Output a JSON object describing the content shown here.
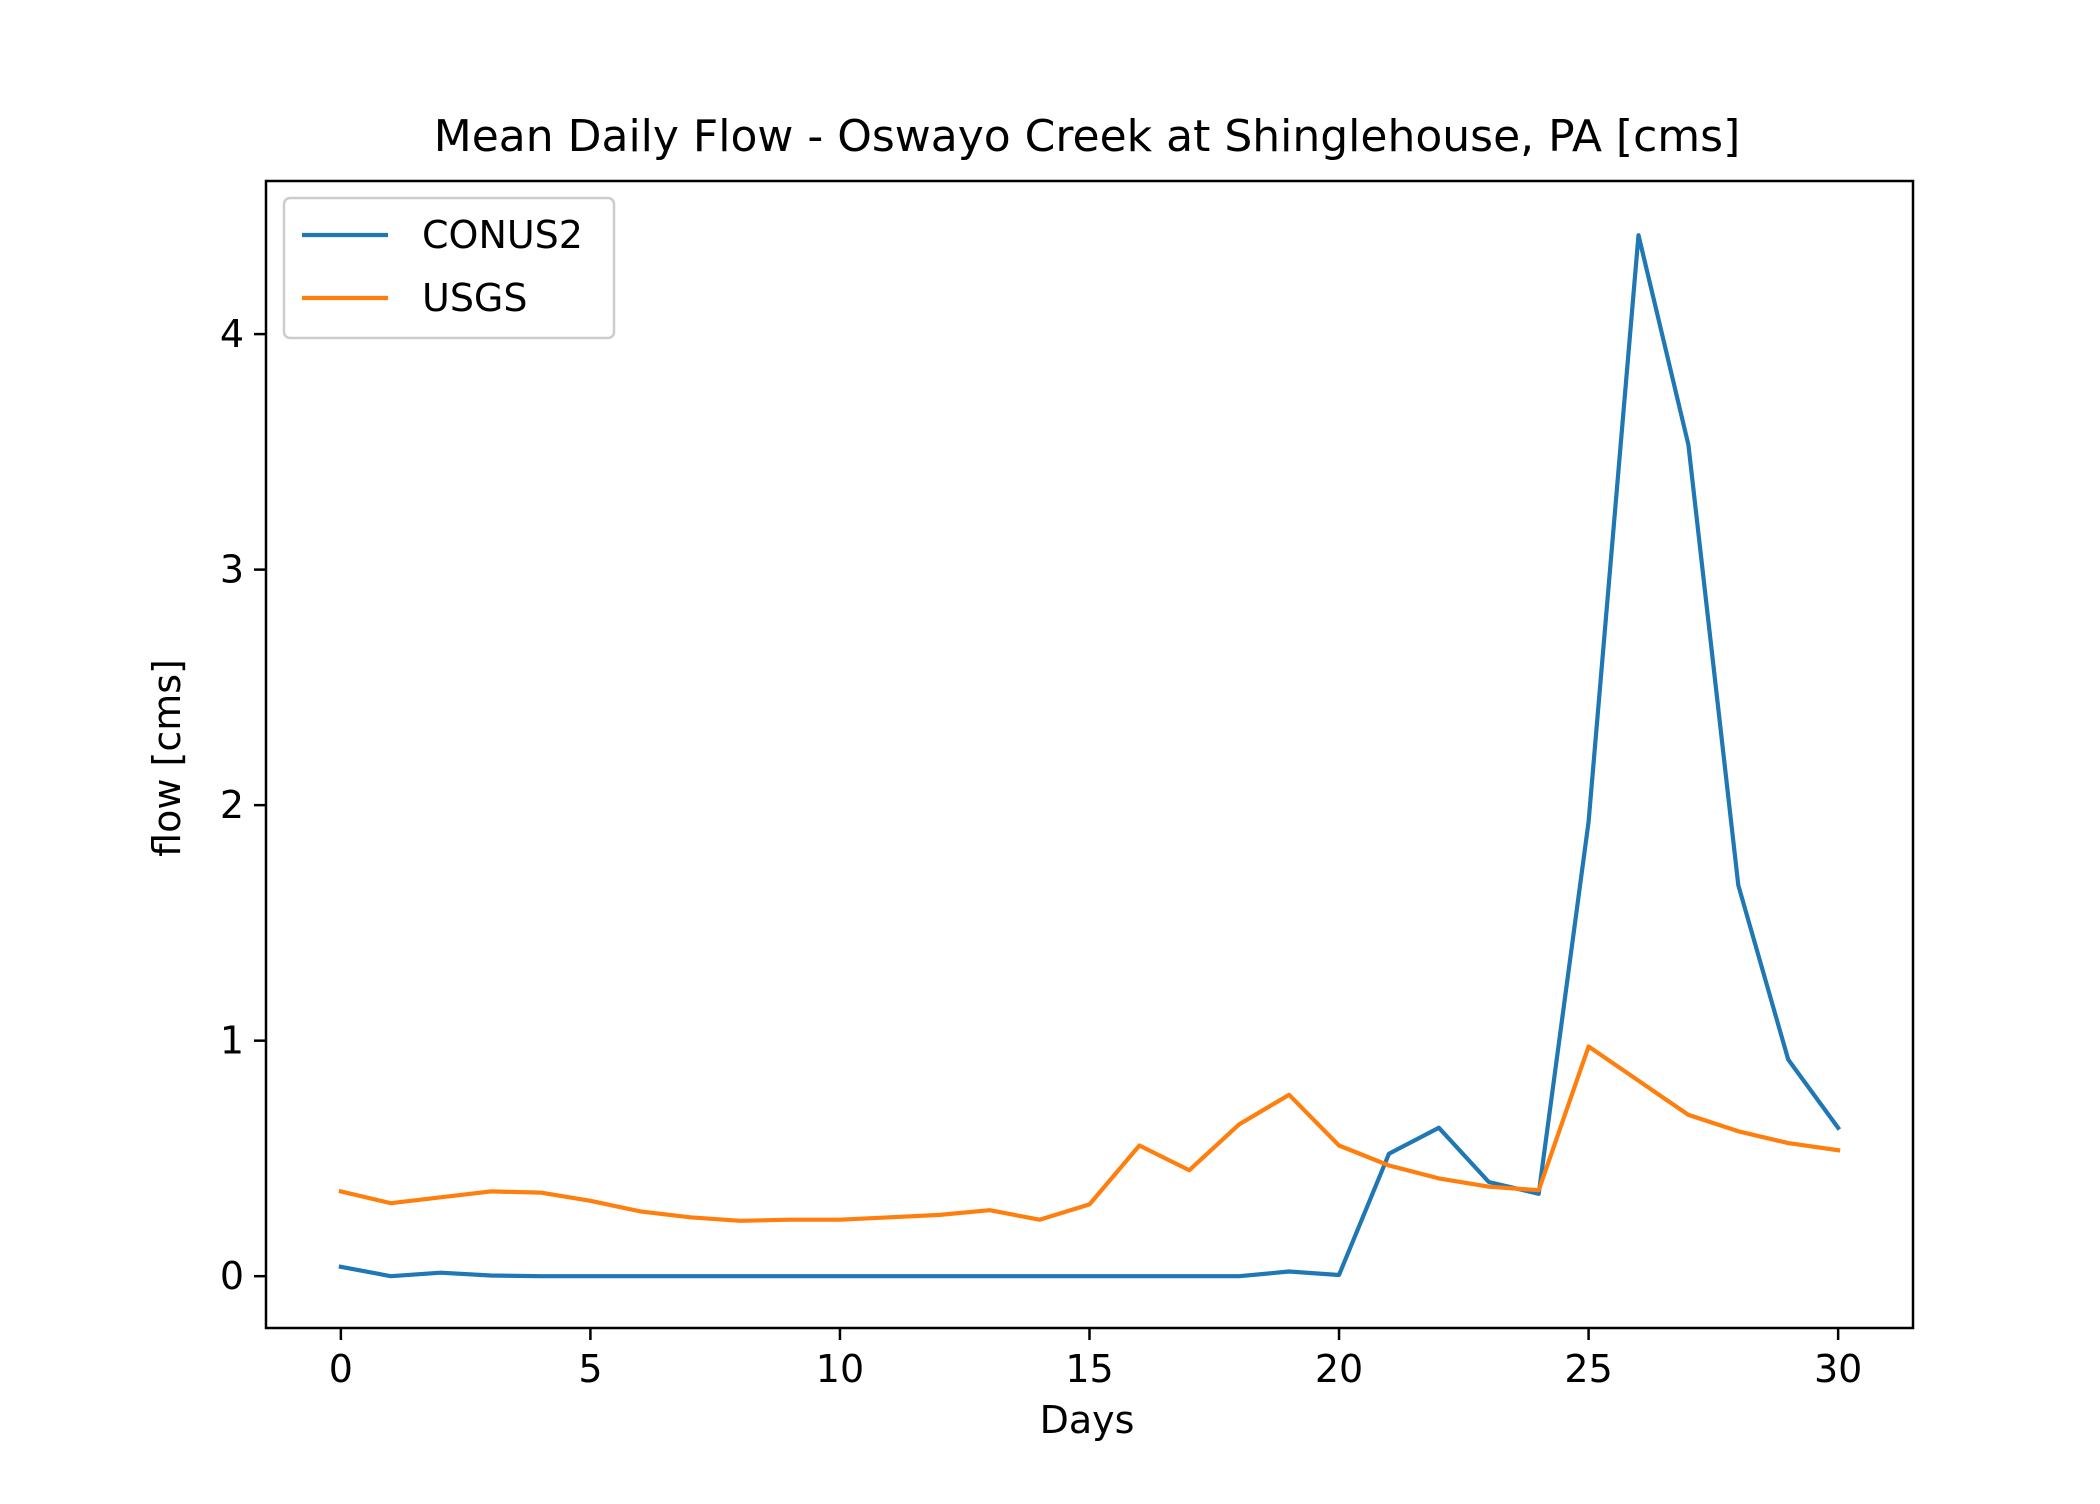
{
  "chart_data": {
    "type": "line",
    "title": "Mean Daily Flow - Oswayo Creek at Shinglehouse, PA [cms]",
    "xlabel": "Days",
    "ylabel": "flow [cms]",
    "xlim": [
      -1.5,
      31.5
    ],
    "ylim": [
      -0.22,
      4.65
    ],
    "xticks": [
      0,
      5,
      10,
      15,
      20,
      25,
      30
    ],
    "xtick_labels": [
      "0",
      "5",
      "10",
      "15",
      "20",
      "25",
      "30"
    ],
    "yticks": [
      0,
      1,
      2,
      3,
      4
    ],
    "ytick_labels": [
      "0",
      "1",
      "2",
      "3",
      "4"
    ],
    "grid": false,
    "legend_position": "top-left",
    "x": [
      0,
      1,
      2,
      3,
      4,
      5,
      6,
      7,
      8,
      9,
      10,
      11,
      12,
      13,
      14,
      15,
      16,
      17,
      18,
      19,
      20,
      21,
      22,
      23,
      24,
      25,
      26,
      27,
      28,
      29,
      30
    ],
    "series": [
      {
        "name": "CONUS2",
        "color": "#1f77b4",
        "values": [
          0.04,
          0.0,
          0.015,
          0.003,
          0.0,
          0.0,
          0.0,
          0.0,
          0.0,
          0.0,
          0.0,
          0.0,
          0.0,
          0.0,
          0.0,
          0.0,
          0.0,
          0.0,
          0.0,
          0.02,
          0.005,
          0.52,
          0.63,
          0.4,
          0.35,
          1.93,
          4.42,
          3.53,
          1.66,
          0.92,
          0.63
        ]
      },
      {
        "name": "USGS",
        "color": "#ff7f0e",
        "values": [
          0.36,
          0.31,
          0.335,
          0.36,
          0.355,
          0.32,
          0.275,
          0.25,
          0.235,
          0.24,
          0.24,
          0.25,
          0.26,
          0.28,
          0.24,
          0.305,
          0.555,
          0.45,
          0.645,
          0.77,
          0.555,
          0.47,
          0.415,
          0.38,
          0.365,
          0.975,
          0.83,
          0.685,
          0.615,
          0.565,
          0.535
        ]
      }
    ]
  }
}
